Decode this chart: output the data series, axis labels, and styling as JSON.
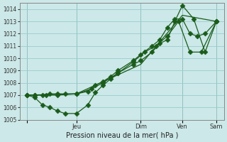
{
  "bg_color": "#cce8e8",
  "grid_color": "#99cccc",
  "line_color": "#1a5c1a",
  "xlabel": "Pression niveau de la mer( hPa )",
  "ylim": [
    1005,
    1014.5
  ],
  "yticks": [
    1005,
    1006,
    1007,
    1008,
    1009,
    1010,
    1011,
    1012,
    1013,
    1014
  ],
  "xlim": [
    -10,
    260
  ],
  "xtick_positions": [
    0,
    65,
    150,
    205,
    250
  ],
  "xtick_labels": [
    "",
    "Jeu",
    "Dim",
    "Ven",
    "Sam"
  ],
  "vlines": [
    0,
    65,
    150,
    205,
    250
  ],
  "line1_x": [
    0,
    10,
    20,
    30,
    40,
    50,
    65,
    80,
    90,
    100,
    110,
    120,
    140,
    150,
    165,
    175,
    185,
    195,
    205,
    220,
    235,
    250
  ],
  "line1_y": [
    1007.0,
    1006.8,
    1006.2,
    1006.0,
    1005.7,
    1005.5,
    1005.5,
    1006.2,
    1007.2,
    1007.8,
    1008.3,
    1008.8,
    1009.5,
    1009.8,
    1010.5,
    1011.2,
    1011.5,
    1013.0,
    1014.3,
    1013.2,
    1010.5,
    1013.0
  ],
  "line2_x": [
    0,
    10,
    20,
    30,
    40,
    50,
    65,
    80,
    90,
    100,
    110,
    120,
    140,
    150,
    165,
    175,
    185,
    195,
    205,
    215,
    225,
    235,
    250
  ],
  "line2_y": [
    1007.0,
    1007.0,
    1007.0,
    1007.1,
    1007.1,
    1007.1,
    1007.1,
    1007.3,
    1007.8,
    1008.1,
    1008.5,
    1009.0,
    1009.8,
    1010.3,
    1011.0,
    1011.5,
    1012.5,
    1013.2,
    1013.2,
    1012.0,
    1011.8,
    1012.0,
    1013.0
  ],
  "line3_x": [
    0,
    65,
    150,
    205,
    250
  ],
  "line3_y": [
    1007.0,
    1007.1,
    1009.5,
    1013.5,
    1013.0
  ],
  "line4_x": [
    0,
    10,
    25,
    40,
    65,
    85,
    100,
    120,
    140,
    155,
    170,
    185,
    200,
    215,
    230,
    250
  ],
  "line4_y": [
    1007.0,
    1007.0,
    1007.0,
    1007.0,
    1007.1,
    1007.5,
    1008.0,
    1008.8,
    1009.7,
    1010.5,
    1011.0,
    1011.8,
    1013.0,
    1010.5,
    1010.5,
    1013.0
  ]
}
